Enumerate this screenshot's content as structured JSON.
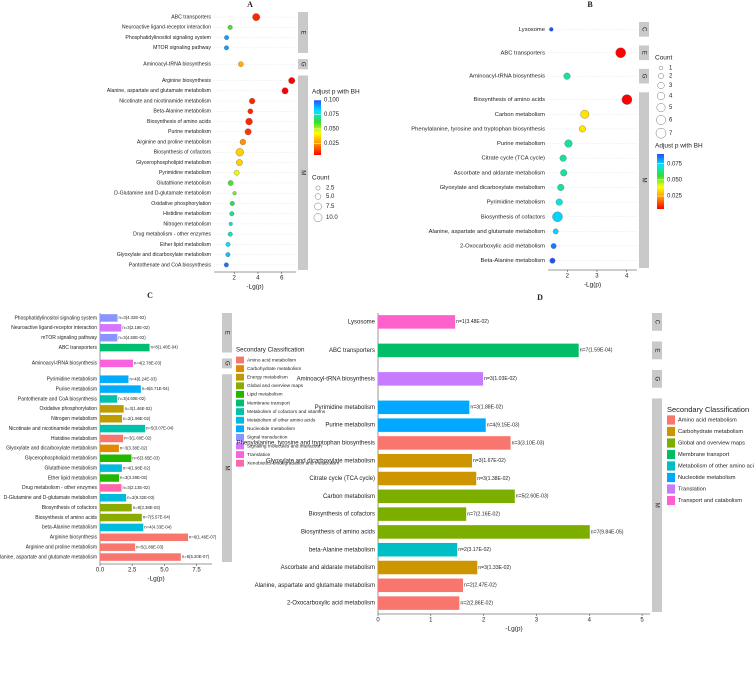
{
  "chart_data": [
    {
      "type": "dot",
      "panel": "A",
      "xlabel": "-Lg(p)",
      "categories": [
        "ABC transporters",
        "Neuroactive ligand-receptor interaction",
        "Phosphatidylinositol signaling system",
        "MTOR signaling pathway",
        "Aminoacyl-tRNA biosynthesis",
        "Arginine biosynthesis",
        "Alanine, aspartate and glutamate metabolism",
        "Nicotinate and nicotinamide metabolism",
        "Beta-Alanine metabolism",
        "Biosynthesis of amino acids",
        "Purine metabolism",
        "Arginine and proline metabolism",
        "Biosynthesis of cofactors",
        "Glycerophospholipid metabolism",
        "Pyrimidine metabolism",
        "Glutathione metabolism",
        "D-Glutamine and D-glutamate metabolism",
        "Oxidative phosphorylation",
        "Histidine metabolism",
        "Nitrogen metabolism",
        "Drug metabolism - other enzymes",
        "Ether lipid metabolism",
        "Glyoxylate and dicarboxylate metabolism",
        "Pantothenate and CoA biosynthesis"
      ],
      "groups": [
        "E",
        "E",
        "E",
        "E",
        "G",
        "M",
        "M",
        "M",
        "M",
        "M",
        "M",
        "M",
        "M",
        "M",
        "M",
        "M",
        "M",
        "M",
        "M",
        "M",
        "M",
        "M",
        "M",
        "M"
      ],
      "values": [
        3.85,
        1.66,
        1.36,
        1.35,
        2.56,
        6.84,
        6.28,
        3.51,
        3.36,
        3.25,
        3.17,
        2.73,
        2.47,
        2.44,
        2.21,
        1.7,
        2.03,
        1.84,
        1.8,
        1.71,
        1.67,
        1.48,
        1.47,
        1.34
      ],
      "sizes": [
        8,
        3,
        3,
        3,
        4,
        6,
        6,
        5,
        4,
        7,
        6,
        5,
        9,
        6,
        4,
        4,
        2,
        3,
        3,
        2,
        3,
        3,
        3,
        3
      ],
      "adjusted_p": [
        0.01,
        0.06,
        0.09,
        0.09,
        0.03,
        0.001,
        0.001,
        0.01,
        0.01,
        0.01,
        0.012,
        0.025,
        0.035,
        0.035,
        0.045,
        0.06,
        0.055,
        0.065,
        0.07,
        0.075,
        0.075,
        0.08,
        0.085,
        0.095
      ],
      "xlim": [
        0.3,
        7.2
      ],
      "xticks": [
        2,
        4,
        6
      ],
      "size_title": "Count",
      "size_ticks": [
        2.5,
        {
          "value": 5,
          "label": "5.0"
        },
        7.5,
        {
          "value": 10,
          "label": "10.0"
        }
      ],
      "color_title": "Adjust p with BH",
      "colorlim": [
        0.005,
        0.1
      ],
      "colorbar_ticks": [
        {
          "value": 0.1,
          "label": "0.100"
        },
        0.075,
        {
          "value": 0.05,
          "label": "0.050"
        },
        0.025
      ],
      "colorscale": [
        "#ff0000",
        "#ff8c00",
        "#ffff00",
        "#33dd33",
        "#00e5ff",
        "#1f4fff"
      ]
    },
    {
      "type": "dot",
      "panel": "B",
      "xlabel": "-Lg(p)",
      "categories": [
        "Lysosome",
        "ABC transporters",
        "Aminoacyl-tRNA biosynthesis",
        "Biosynthesis of amino acids",
        "Carbon metabolism",
        "Phenylalanine, tyrosine and tryptophan biosynthesis",
        "Purine metabolism",
        "Citrate cycle (TCA cycle)",
        "Ascorbate and aldarate metabolism",
        "Glyoxylate and dicarboxylate metabolism",
        "Pyrimidine metabolism",
        "Biosynthesis of cofactors",
        "Alanine, aspartate and glutamate metabolism",
        "2-Oxocarboxylic acid metabolism",
        "Beta-Alanine metabolism"
      ],
      "groups": [
        "C",
        "E",
        "G",
        "M",
        "M",
        "M",
        "M",
        "M",
        "M",
        "M",
        "M",
        "M",
        "M",
        "M",
        "M"
      ],
      "values": [
        1.46,
        3.8,
        1.99,
        4.01,
        2.59,
        2.51,
        2.04,
        1.86,
        1.88,
        1.78,
        1.73,
        1.67,
        1.61,
        1.54,
        1.5
      ],
      "sizes": [
        1,
        7,
        3,
        7,
        5,
        3,
        4,
        3,
        3,
        3,
        3,
        7,
        2,
        2,
        2
      ],
      "adjusted_p": [
        0.09,
        0.005,
        0.065,
        0.005,
        0.035,
        0.035,
        0.065,
        0.065,
        0.065,
        0.065,
        0.07,
        0.075,
        0.075,
        0.085,
        0.09
      ],
      "xlim": [
        1.35,
        4.35
      ],
      "xticks": [
        2,
        3,
        4
      ],
      "size_title": "Count",
      "size_ticks": [
        1,
        2,
        3,
        4,
        5,
        6,
        7
      ],
      "color_title": "Adjust p with BH",
      "colorlim": [
        0.005,
        0.09
      ],
      "colorbar_ticks": [
        0.075,
        {
          "value": 0.05,
          "label": "0.050"
        },
        0.025
      ],
      "colorscale": [
        "#ff0000",
        "#ff8c00",
        "#ffff00",
        "#33dd33",
        "#00e5ff",
        "#1f4fff"
      ]
    },
    {
      "type": "bar",
      "panel": "C",
      "xlabel": "-Lg(p)",
      "categories": [
        "Phosphatidylinositol signaling system",
        "Neuroactive ligand-receptor interaction",
        "mTOR signaling pathway",
        "ABC transporters",
        "Aminoacyl-tRNA biosynthesis",
        "Pyrimidine metabolism",
        "Purine metabolism",
        "Pantothenate and CoA biosynthesis",
        "Oxidative phosphorylation",
        "Nitrogen metabolism",
        "Nicotinate and nicotinamide metabolism",
        "Histidine metabolism",
        "Glyoxylate and dicarboxylate metabolism",
        "Glycerophospholipid metabolism",
        "Glutathione metabolism",
        "Ether lipid metabolism",
        "Drug metabolism - other enzymes",
        "D-Glutamine and D-glutamate metabolism",
        "Biosynthesis of cofactors",
        "Biosynthesis of amino acids",
        "beta-Alanine metabolism",
        "Arginine biosynthesis",
        "Arginine and proline metabolism",
        "Alanine, aspartate and glutamate metabolism"
      ],
      "groups": [
        "E",
        "E",
        "E",
        "E",
        "G",
        "M",
        "M",
        "M",
        "M",
        "M",
        "M",
        "M",
        "M",
        "M",
        "M",
        "M",
        "M",
        "M",
        "M",
        "M",
        "M",
        "M",
        "M",
        "M"
      ],
      "values": [
        1.36,
        1.66,
        1.35,
        3.85,
        2.56,
        2.21,
        3.17,
        1.34,
        1.84,
        1.71,
        3.51,
        1.8,
        1.47,
        2.44,
        1.7,
        1.48,
        1.67,
        2.03,
        2.47,
        3.25,
        3.36,
        6.84,
        2.73,
        6.28
      ],
      "value_labels": [
        "n=3(4.32E-02)",
        "n=3(2.18E-02)",
        "n=3(4.50E-02)",
        "n=8(1.40E-04)",
        "n=4(2.78E-03)",
        "n=4(6.24E-03)",
        "n=6(6.71E-04)",
        "n=3(4.60E-02)",
        "n=3(1.46E-02)",
        "n=2(1.96E-02)",
        "n=5(3.07E-04)",
        "n=3(1.60E-02)",
        "n=3(3.38E-02)",
        "n=6(3.65E-03)",
        "n=4(1.98E-02)",
        "n=3(3.29E-02)",
        "n=3(2.13E-02)",
        "n=2(9.32E-03)",
        "n=9(3.38E-03)",
        "n=7(5.57E-04)",
        "n=4(4.33E-04)",
        "n=6(1.46E-07)",
        "n=5(1.88E-03)",
        "n=6(5.20E-07)"
      ],
      "classes": [
        "Signal transduction",
        "Signaling molecules and interaction",
        "Signal transduction",
        "Membrane transport",
        "Translation",
        "Nucleotide metabolism",
        "Nucleotide metabolism",
        "Metabolism of cofactors and vitamins",
        "Energy metabolism",
        "Energy metabolism",
        "Metabolism of cofactors and vitamins",
        "Amino acid metabolism",
        "Carbohydrate metabolism",
        "Lipid metabolism",
        "Metabolism of other amino acids",
        "Lipid metabolism",
        "Xenobiotics biodegradation and metabolism",
        "Metabolism of other amino acids",
        "Global and overview maps",
        "Global and overview maps",
        "Metabolism of other amino acids",
        "Amino acid metabolism",
        "Amino acid metabolism",
        "Amino acid metabolism"
      ],
      "xlim": [
        0,
        8.7
      ],
      "xticks": [
        {
          "value": 0,
          "label": "0.0"
        },
        2.5,
        {
          "value": 5,
          "label": "5.0"
        },
        7.5
      ],
      "legend_title": "Secondary Classification",
      "legend": [
        {
          "name": "Amino acid metabolism",
          "color": "#F8766D"
        },
        {
          "name": "Carbohydrate metabolism",
          "color": "#E18A00"
        },
        {
          "name": "Energy metabolism",
          "color": "#BE9C00"
        },
        {
          "name": "Global and overview maps",
          "color": "#8CAB00"
        },
        {
          "name": "Lipid metabolism",
          "color": "#24B700"
        },
        {
          "name": "Membrane transport",
          "color": "#00BE70"
        },
        {
          "name": "Metabolism of cofactors and vitamins",
          "color": "#00C1AB"
        },
        {
          "name": "Metabolism of other amino acids",
          "color": "#00BBDA"
        },
        {
          "name": "Nucleotide metabolism",
          "color": "#00ACFC"
        },
        {
          "name": "Signal transduction",
          "color": "#8B93FF"
        },
        {
          "name": "Signaling molecules and interaction",
          "color": "#D575FE"
        },
        {
          "name": "Translation",
          "color": "#F962DD"
        },
        {
          "name": "Xenobiotics biodegradation and metabolism",
          "color": "#FF65AC"
        }
      ]
    },
    {
      "type": "bar",
      "panel": "D",
      "xlabel": "-Lg(p)",
      "categories": [
        "Lysosome",
        "ABC transporters",
        "Aminoacyl-tRNA biosynthesis",
        "Pyrimidine metabolism",
        "Purine metabolism",
        "Phenylalanine, tyrosine and tryptophan biosynthesis",
        "Glyoxylate and dicarboxylate metabolism",
        "Citrate cycle (TCA cycle)",
        "Carbon metabolism",
        "Biosynthesis of cofactors",
        "Biosynthesis of amino acids",
        "beta-Alanine metabolism",
        "Ascorbate and aldarate metabolism",
        "Alanine, aspartate and glutamate metabolism",
        "2-Oxocarboxylic acid metabolism"
      ],
      "groups": [
        "C",
        "E",
        "G",
        "M",
        "M",
        "M",
        "M",
        "M",
        "M",
        "M",
        "M",
        "M",
        "M",
        "M",
        "M"
      ],
      "values": [
        1.46,
        3.8,
        1.99,
        1.73,
        2.04,
        2.51,
        1.78,
        1.86,
        2.59,
        1.67,
        4.01,
        1.5,
        1.88,
        1.61,
        1.54
      ],
      "value_labels": [
        "n=1(3.48E-02)",
        "n=7(1.59E-04)",
        "n=3(1.03E-02)",
        "n=3(1.88E-02)",
        "n=4(9.15E-03)",
        "n=3(3.10E-03)",
        "n=3(1.67E-02)",
        "n=3(1.38E-02)",
        "n=5(2.60E-03)",
        "n=7(2.16E-02)",
        "n=7(9.84E-05)",
        "n=2(3.17E-02)",
        "n=3(1.33E-02)",
        "n=2(2.47E-02)",
        "n=2(2.86E-02)"
      ],
      "classes": [
        "Transport and catabolism",
        "Membrane transport",
        "Translation",
        "Nucleotide metabolism",
        "Nucleotide metabolism",
        "Amino acid metabolism",
        "Carbohydrate metabolism",
        "Carbohydrate metabolism",
        "Global and overview maps",
        "Global and overview maps",
        "Global and overview maps",
        "Metabolism of other amino acids",
        "Carbohydrate metabolism",
        "Amino acid metabolism",
        "Amino acid metabolism"
      ],
      "xlim": [
        0,
        5.15
      ],
      "xticks": [
        0,
        1,
        2,
        3,
        4,
        5
      ],
      "legend_title": "Secondary Classification",
      "legend": [
        {
          "name": "Amino acid metabolism",
          "color": "#F8766D"
        },
        {
          "name": "Carbohydrate metabolism",
          "color": "#CD9600"
        },
        {
          "name": "Global and overview maps",
          "color": "#7CAE00"
        },
        {
          "name": "Membrane transport",
          "color": "#00BE67"
        },
        {
          "name": "Metabolism of other amino acids",
          "color": "#00BFC4"
        },
        {
          "name": "Nucleotide metabolism",
          "color": "#00A9FF"
        },
        {
          "name": "Translation",
          "color": "#C77CFF"
        },
        {
          "name": "Transport and catabolism",
          "color": "#FF61CC"
        }
      ]
    }
  ]
}
